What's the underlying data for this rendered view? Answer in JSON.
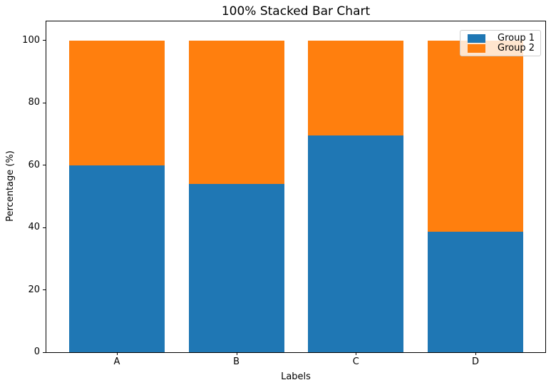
{
  "chart_data": {
    "type": "bar",
    "stacked": true,
    "normalized_100": true,
    "title": "100% Stacked Bar Chart",
    "xlabel": "Labels",
    "ylabel": "Percentage (%)",
    "categories": [
      "A",
      "B",
      "C",
      "D"
    ],
    "series": [
      {
        "name": "Group 1",
        "color": "#1f77b4",
        "values": [
          60.0,
          53.9,
          69.4,
          38.7
        ]
      },
      {
        "name": "Group 2",
        "color": "#ff7f0e",
        "values": [
          40.0,
          46.1,
          30.6,
          61.3
        ]
      }
    ],
    "yticks": [
      0,
      20,
      40,
      60,
      80,
      100
    ],
    "ylim": [
      0,
      105
    ],
    "grid": false,
    "legend_position": "upper right",
    "axis_color": "#000000",
    "background_color": "#ffffff"
  }
}
